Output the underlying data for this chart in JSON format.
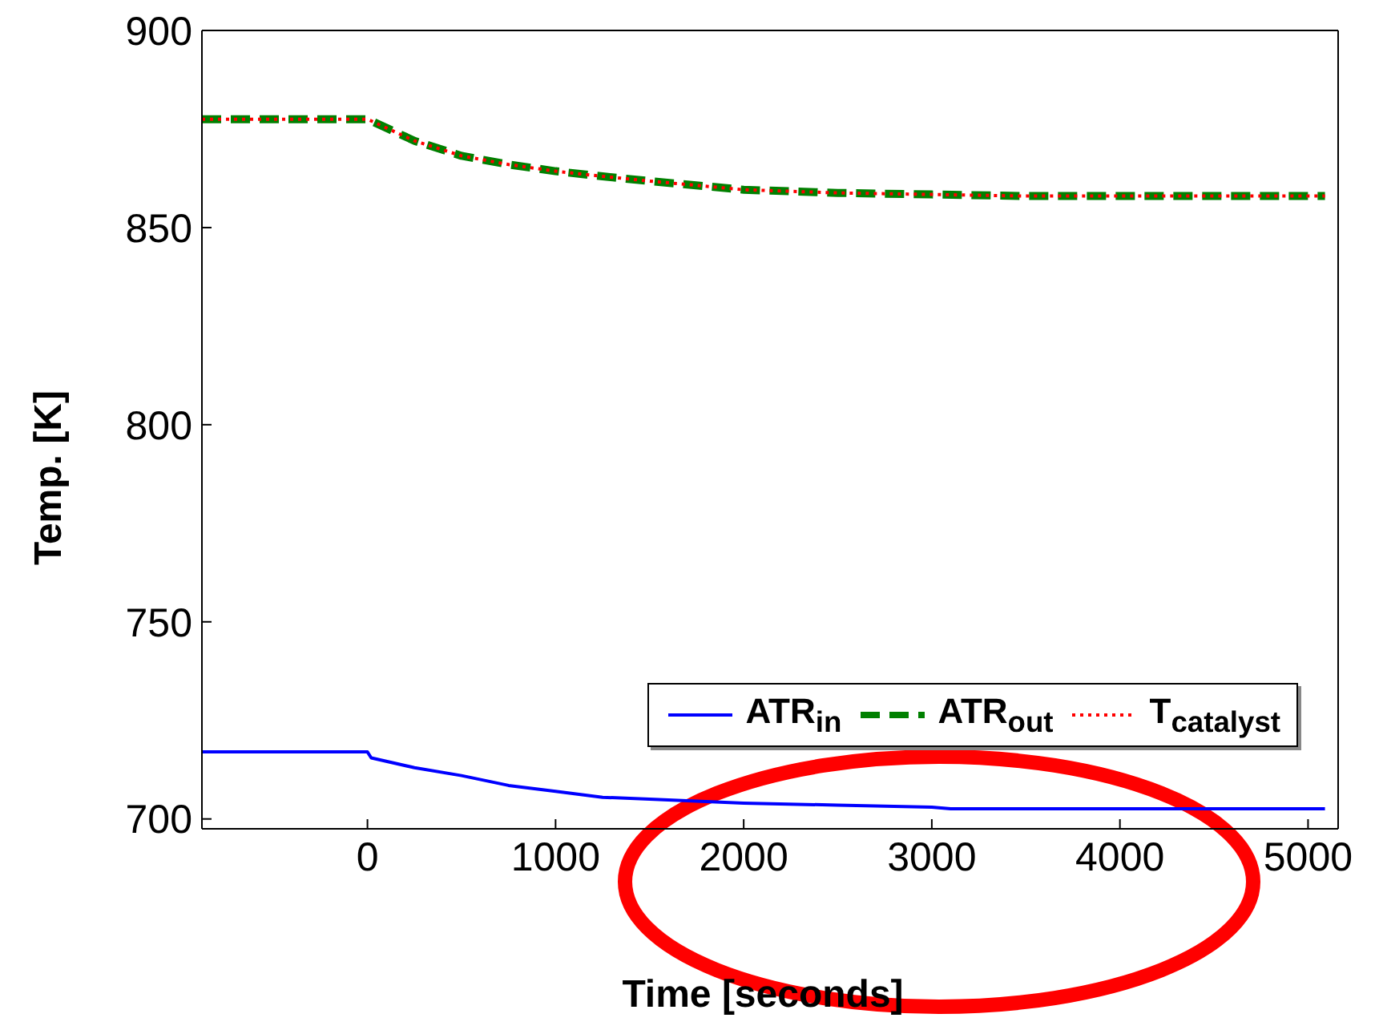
{
  "chart_data": {
    "type": "line",
    "xlabel": "Time [seconds]",
    "ylabel": "Temp. [K]",
    "xlim": [
      -880,
      5160
    ],
    "xticks": [
      0,
      1000,
      2000,
      3000,
      4000,
      5000
    ],
    "ylim": [
      697.5,
      900
    ],
    "yticks": [
      700,
      750,
      800,
      850,
      900
    ],
    "legend": "bottom right",
    "marker": "none",
    "series": [
      {
        "name": "ATR$_{in}$",
        "color": "#0000ff",
        "line_style": "solid",
        "x": [
          -880,
          0,
          20,
          250,
          500,
          750,
          1000,
          1250,
          1500,
          2000,
          2500,
          3000,
          3100,
          4000,
          5090
        ],
        "values": [
          717,
          717,
          715.5,
          713,
          711,
          708.5,
          707,
          705.5,
          705,
          704,
          703.5,
          703,
          702.6,
          702.6,
          702.6
        ]
      },
      {
        "name": "ATR$_{out}$",
        "color": "#008000",
        "line_style": "dashed",
        "x": [
          -880,
          0,
          250,
          500,
          750,
          1000,
          1250,
          1500,
          2000,
          2500,
          3000,
          3500,
          4000,
          5090
        ],
        "values": [
          877.5,
          877.5,
          872,
          868.2,
          866,
          864.3,
          863,
          861.8,
          859.6,
          858.8,
          858.4,
          858,
          858,
          858
        ]
      },
      {
        "name": "T$_{catalyst}$",
        "color": "#ff0000",
        "line_style": "dotted",
        "x": [
          -880,
          0,
          250,
          500,
          750,
          1000,
          1250,
          1500,
          2000,
          2500,
          3000,
          3500,
          4000,
          5090
        ],
        "values": [
          877.5,
          877.5,
          872,
          868.2,
          866,
          864.3,
          863,
          861.8,
          859.6,
          858.8,
          858.4,
          858,
          858,
          858
        ]
      }
    ]
  }
}
